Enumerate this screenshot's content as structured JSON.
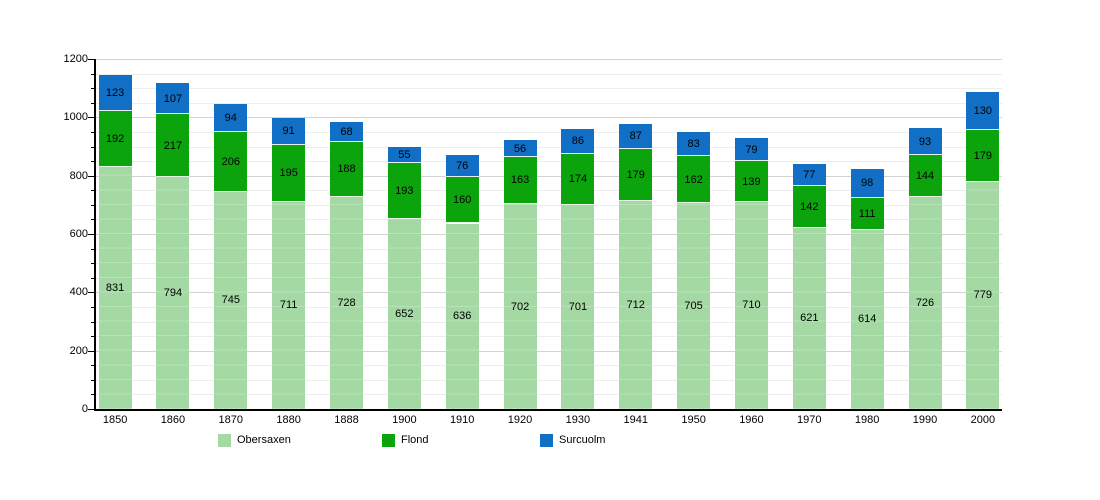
{
  "chart_data": {
    "type": "bar",
    "stacked": true,
    "title": "",
    "xlabel": "",
    "ylabel": "",
    "categories": [
      "1850",
      "1860",
      "1870",
      "1880",
      "1888",
      "1900",
      "1910",
      "1920",
      "1930",
      "1941",
      "1950",
      "1960",
      "1970",
      "1980",
      "1990",
      "2000"
    ],
    "series": [
      {
        "name": "Obersaxen",
        "color": "#a4d9a4",
        "values": [
          831,
          794,
          745,
          711,
          728,
          652,
          636,
          702,
          701,
          712,
          705,
          710,
          621,
          614,
          726,
          779
        ]
      },
      {
        "name": "Flond",
        "color": "#0ca40c",
        "values": [
          192,
          217,
          206,
          195,
          188,
          193,
          160,
          163,
          174,
          179,
          162,
          139,
          142,
          111,
          144,
          179
        ]
      },
      {
        "name": "Surcuolm",
        "color": "#1170c6",
        "values": [
          123,
          107,
          94,
          91,
          68,
          55,
          76,
          56,
          86,
          87,
          83,
          79,
          77,
          98,
          93,
          130
        ]
      }
    ],
    "ylim": [
      0,
      1200
    ],
    "y_ticks": [
      0,
      200,
      400,
      600,
      800,
      1000,
      1200
    ],
    "grid": {
      "minor_step": 50,
      "major_step": 200,
      "minor_color": "#ededed",
      "major_color": "#d4d4d4"
    },
    "legend_position": "bottom",
    "axis_color": "#000000",
    "label_color": "#000000"
  }
}
